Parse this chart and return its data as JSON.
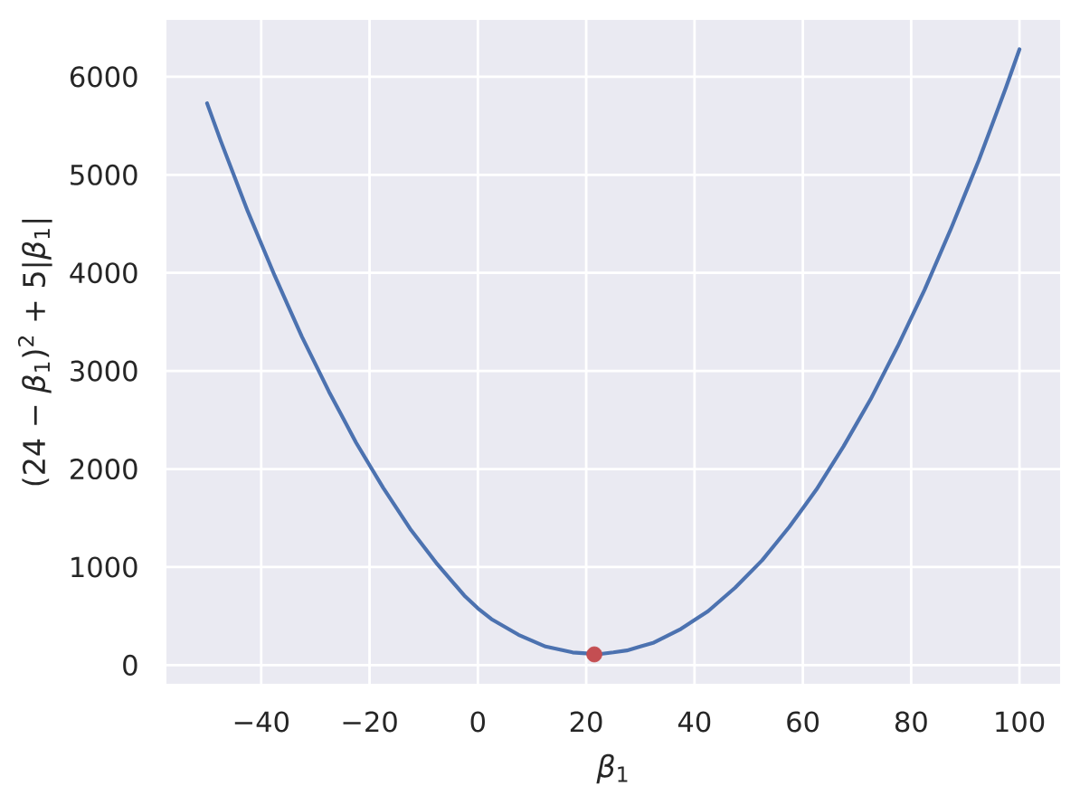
{
  "chart_data": {
    "type": "line",
    "xlabel": "*β*$_{1}$",
    "ylabel": "(24 − *β*$_{1}$)$^{2}$ + 5|*β*$_{1}$|",
    "xlim": [
      -57.5,
      107.5
    ],
    "ylim": [
      -190,
      6580
    ],
    "xticks": [
      {
        "value": -40,
        "label": "−40"
      },
      {
        "value": -20,
        "label": "−20"
      },
      0,
      20,
      40,
      60,
      80,
      100
    ],
    "yticks": [
      0,
      1000,
      2000,
      3000,
      4000,
      5000,
      6000
    ],
    "grid": true,
    "line_style": "solid",
    "series": [
      {
        "color": "#4c72b0",
        "x": [
          -50,
          -47.5,
          -45,
          -42.5,
          -40,
          -37.5,
          -35,
          -32.5,
          -30,
          -27.5,
          -25,
          -22.5,
          -20,
          -17.5,
          -15,
          -12.5,
          -10,
          -7.5,
          -5,
          -2.5,
          0,
          2.5,
          5,
          7.5,
          10,
          12.5,
          15,
          17.5,
          20,
          22,
          25,
          27.5,
          30,
          32.5,
          35,
          37.5,
          40,
          42.5,
          45,
          47.5,
          50,
          52.5,
          55,
          57.5,
          60,
          62.5,
          65,
          67.5,
          70,
          72.5,
          75,
          77.5,
          80,
          82.5,
          85,
          87.5,
          90,
          92.5,
          95,
          97.5,
          100
        ],
        "values": [
          5730,
          5350,
          4990,
          4630,
          4300,
          3970,
          3660,
          3350,
          3070,
          2790,
          2530,
          2270,
          2040,
          1810,
          1600,
          1390,
          1210,
          1030,
          870,
          710,
          580,
          470,
          390,
          310,
          250,
          190,
          160,
          130,
          120,
          110,
          130,
          150,
          190,
          230,
          300,
          370,
          460,
          550,
          670,
          790,
          930,
          1070,
          1240,
          1410,
          1600,
          1790,
          2010,
          2230,
          2470,
          2710,
          2980,
          3250,
          3540,
          3830,
          4150,
          4470,
          4810,
          5150,
          5520,
          5890,
          6280
        ]
      },
      {
        "type": "scatter",
        "marker": "circle",
        "color": "#c44e52",
        "x": [
          21.5
        ],
        "values": [
          110
        ]
      }
    ]
  }
}
